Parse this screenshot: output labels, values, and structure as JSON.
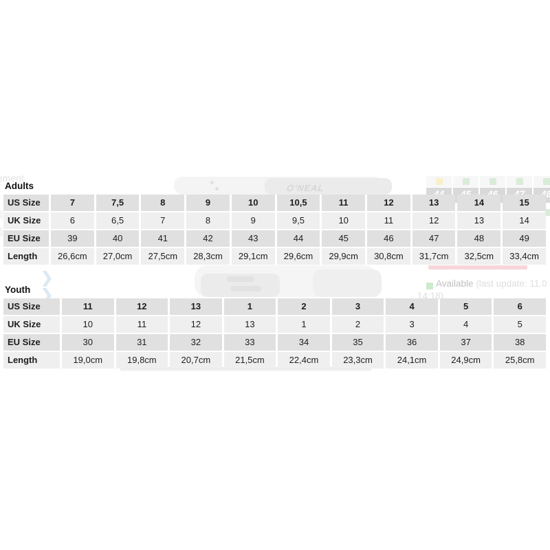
{
  "overlay": {
    "adults": {
      "title": "Adults",
      "rows": [
        {
          "label": "US Size",
          "values": [
            "7",
            "7,5",
            "8",
            "9",
            "10",
            "10,5",
            "11",
            "12",
            "13",
            "14",
            "15"
          ]
        },
        {
          "label": "UK Size",
          "values": [
            "6",
            "6,5",
            "7",
            "8",
            "9",
            "9,5",
            "10",
            "11",
            "12",
            "13",
            "14"
          ]
        },
        {
          "label": "EU Size",
          "values": [
            "39",
            "40",
            "41",
            "42",
            "43",
            "44",
            "45",
            "46",
            "47",
            "48",
            "49"
          ]
        },
        {
          "label": "Length",
          "values": [
            "26,6cm",
            "27,0cm",
            "27,5cm",
            "28,3cm",
            "29,1cm",
            "29,6cm",
            "29,9cm",
            "30,8cm",
            "31,7cm",
            "32,5cm",
            "33,4cm"
          ]
        }
      ]
    },
    "youth": {
      "title": "Youth",
      "rows": [
        {
          "label": "US Size",
          "values": [
            "11",
            "12",
            "13",
            "1",
            "2",
            "3",
            "4",
            "5",
            "6"
          ]
        },
        {
          "label": "UK Size",
          "values": [
            "10",
            "11",
            "12",
            "13",
            "1",
            "2",
            "3",
            "4",
            "5"
          ]
        },
        {
          "label": "EU Size",
          "values": [
            "30",
            "31",
            "32",
            "33",
            "34",
            "35",
            "36",
            "37",
            "38"
          ]
        },
        {
          "label": "Length",
          "values": [
            "19,0cm",
            "19,8cm",
            "20,7cm",
            "21,5cm",
            "22,4cm",
            "23,3cm",
            "24,1cm",
            "24,9cm",
            "25,8cm"
          ]
        }
      ]
    }
  },
  "background": {
    "clipped_text": "ement",
    "brand_text": "O'NEAL",
    "size_selector": {
      "sizes": [
        "44",
        "45",
        "46",
        "47",
        "48"
      ],
      "stock": [
        "limited",
        "available",
        "available",
        "available",
        "available"
      ]
    },
    "legend": {
      "label": "Available",
      "note": "(last update: 11.0",
      "note_line2": "14:18)"
    },
    "chevron": "❯"
  },
  "colors": {
    "row_dark": "#e0e0e0",
    "row_light": "#efefef",
    "cell_text": "#1d1d1d",
    "stock_available": "#d9ecd8",
    "stock_limited": "#f9efc9",
    "size_cell_bg": "#d9d9d9",
    "size_cell_text": "#ffffff",
    "pink_bar": "#f8d6da",
    "legend_square": "#cdeacd"
  }
}
